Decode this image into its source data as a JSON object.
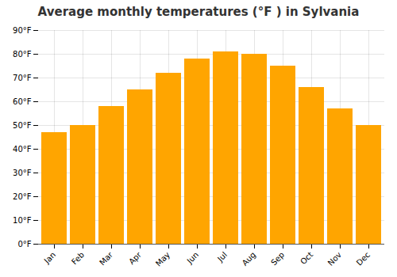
{
  "chart_data": {
    "type": "bar",
    "title": "Average monthly temperatures (°F ) in Sylvania",
    "categories": [
      "Jan",
      "Feb",
      "Mar",
      "Apr",
      "May",
      "Jun",
      "Jul",
      "Aug",
      "Sep",
      "Oct",
      "Nov",
      "Dec"
    ],
    "values": [
      47,
      50,
      58,
      65,
      72,
      78,
      81,
      80,
      75,
      66,
      57,
      50
    ],
    "color": "#FFA500",
    "ylim": [
      0,
      90
    ],
    "yticks": [
      {
        "value": 0,
        "label": "0°F"
      },
      {
        "value": 10,
        "label": "10°F"
      },
      {
        "value": 20,
        "label": "20°F"
      },
      {
        "value": 30,
        "label": "30°F"
      },
      {
        "value": 40,
        "label": "40°F"
      },
      {
        "value": 50,
        "label": "50°F"
      },
      {
        "value": 60,
        "label": "60°F"
      },
      {
        "value": 70,
        "label": "70°F"
      },
      {
        "value": 80,
        "label": "80°F"
      },
      {
        "value": 90,
        "label": "90°F"
      }
    ],
    "grid": true
  }
}
